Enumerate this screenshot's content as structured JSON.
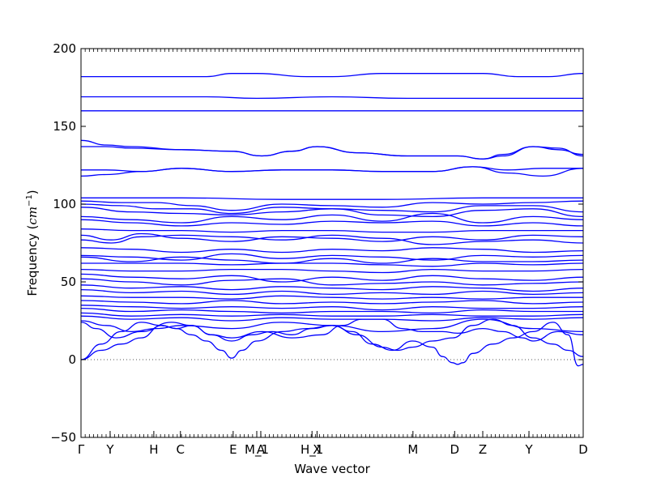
{
  "chart_data": {
    "type": "line",
    "title": "",
    "xlabel": "Wave vector",
    "ylabel_main": "Frequency (",
    "ylabel_unit": "cm",
    "ylabel_exp": "−1",
    "ylabel_close": ")",
    "ylim": [
      -50,
      200
    ],
    "yticks": [
      -50,
      0,
      50,
      100,
      150,
      200
    ],
    "ytick_labels": [
      "−50",
      "0",
      "50",
      "100",
      "150",
      "200"
    ],
    "x_range": [
      0,
      1
    ],
    "high_symmetry_points": [
      {
        "label": "Γ",
        "x": 0.0
      },
      {
        "label": "Y",
        "x": 0.058
      },
      {
        "label": "H",
        "x": 0.145
      },
      {
        "label": "C",
        "x": 0.198
      },
      {
        "label": "E",
        "x": 0.303
      },
      {
        "label": "M_1",
        "x": 0.35
      },
      {
        "label": "A",
        "x": 0.358
      },
      {
        "label": "H_1",
        "x": 0.46
      },
      {
        "label": "X",
        "x": 0.47
      },
      {
        "label": "M",
        "x": 0.661
      },
      {
        "label": "D",
        "x": 0.744
      },
      {
        "label": "Z",
        "x": 0.8
      },
      {
        "label": "Y",
        "x": 0.892
      },
      {
        "label": "D",
        "x": 1.0
      }
    ],
    "zero_line": {
      "y": 0,
      "style": "dotted",
      "color": "#555555"
    },
    "series_color": "#0000ff",
    "bands": [
      {
        "x": [
          0,
          0.08,
          0.16,
          0.25,
          0.3,
          0.35,
          0.45,
          0.5,
          0.6,
          0.7,
          0.8,
          0.87,
          0.93,
          1.0
        ],
        "y": [
          182,
          182,
          182,
          182,
          184,
          184,
          182,
          182,
          184,
          184,
          184,
          182,
          182,
          184
        ]
      },
      {
        "x": [
          0,
          0.25,
          0.35,
          0.5,
          0.65,
          0.8,
          1.0
        ],
        "y": [
          169,
          169,
          168,
          169,
          168,
          168,
          168
        ]
      },
      {
        "x": [
          0,
          0.25,
          0.5,
          0.75,
          1.0
        ],
        "y": [
          160,
          160,
          160,
          160,
          160
        ]
      },
      {
        "x": [
          0,
          0.05,
          0.1,
          0.2,
          0.3,
          0.36,
          0.42,
          0.47,
          0.55,
          0.65,
          0.75,
          0.8,
          0.84,
          0.9,
          0.95,
          1.0
        ],
        "y": [
          141,
          138,
          137,
          135,
          134,
          131,
          134,
          137,
          133,
          131,
          131,
          129,
          132,
          137,
          136,
          131
        ]
      },
      {
        "x": [
          0,
          0.05,
          0.1,
          0.2,
          0.3,
          0.36,
          0.42,
          0.47,
          0.55,
          0.65,
          0.75,
          0.8,
          0.84,
          0.9,
          0.95,
          1.0
        ],
        "y": [
          137,
          137,
          136,
          135,
          134,
          131,
          134,
          137,
          133,
          131,
          131,
          129,
          131,
          137,
          135,
          132
        ]
      },
      {
        "x": [
          0,
          0.05,
          0.12,
          0.2,
          0.3,
          0.4,
          0.5,
          0.6,
          0.7,
          0.78,
          0.85,
          0.92,
          1.0
        ],
        "y": [
          122,
          122,
          121,
          123,
          121,
          122,
          122,
          121,
          121,
          124,
          122,
          123,
          123
        ]
      },
      {
        "x": [
          0,
          0.05,
          0.12,
          0.2,
          0.3,
          0.4,
          0.5,
          0.6,
          0.7,
          0.78,
          0.85,
          0.92,
          1.0
        ],
        "y": [
          118,
          119,
          121,
          123,
          121,
          122,
          122,
          121,
          121,
          124,
          120,
          118,
          123
        ]
      },
      {
        "x": [
          0,
          0.2,
          0.4,
          0.6,
          0.8,
          1.0
        ],
        "y": [
          104,
          104,
          103,
          103,
          104,
          104
        ]
      },
      {
        "x": [
          0,
          0.08,
          0.15,
          0.22,
          0.3,
          0.4,
          0.5,
          0.6,
          0.7,
          0.8,
          0.9,
          1.0
        ],
        "y": [
          102,
          101,
          101,
          99,
          96,
          100,
          99,
          98,
          101,
          100,
          101,
          102
        ]
      },
      {
        "x": [
          0,
          0.08,
          0.15,
          0.22,
          0.3,
          0.4,
          0.5,
          0.6,
          0.7,
          0.8,
          0.9,
          1.0
        ],
        "y": [
          100,
          99,
          97,
          97,
          94,
          98,
          97,
          96,
          95,
          99,
          99,
          95
        ]
      },
      {
        "x": [
          0,
          0.1,
          0.2,
          0.3,
          0.4,
          0.5,
          0.6,
          0.7,
          0.8,
          0.9,
          1.0
        ],
        "y": [
          98,
          95,
          94,
          93,
          95,
          97,
          93,
          92,
          96,
          97,
          92
        ]
      },
      {
        "x": [
          0,
          0.1,
          0.2,
          0.3,
          0.4,
          0.5,
          0.6,
          0.7,
          0.8,
          0.9,
          1.0
        ],
        "y": [
          92,
          90,
          88,
          92,
          90,
          93,
          89,
          94,
          88,
          92,
          90
        ]
      },
      {
        "x": [
          0,
          0.1,
          0.2,
          0.3,
          0.4,
          0.5,
          0.6,
          0.7,
          0.8,
          0.9,
          1.0
        ],
        "y": [
          90,
          88,
          86,
          88,
          87,
          89,
          88,
          89,
          86,
          88,
          86
        ]
      },
      {
        "x": [
          0,
          0.1,
          0.2,
          0.3,
          0.4,
          0.5,
          0.6,
          0.7,
          0.8,
          0.9,
          1.0
        ],
        "y": [
          84,
          83,
          83,
          82,
          83,
          83,
          82,
          82,
          83,
          83,
          83
        ]
      },
      {
        "x": [
          0,
          0.06,
          0.12,
          0.2,
          0.3,
          0.4,
          0.5,
          0.6,
          0.7,
          0.8,
          0.9,
          1.0
        ],
        "y": [
          80,
          77,
          81,
          78,
          76,
          79,
          78,
          76,
          79,
          77,
          80,
          79
        ]
      },
      {
        "x": [
          0,
          0.06,
          0.12,
          0.2,
          0.3,
          0.4,
          0.5,
          0.6,
          0.7,
          0.8,
          0.9,
          1.0
        ],
        "y": [
          77,
          75,
          79,
          80,
          79,
          77,
          80,
          78,
          74,
          76,
          77,
          75
        ]
      },
      {
        "x": [
          0,
          0.1,
          0.2,
          0.3,
          0.4,
          0.5,
          0.6,
          0.7,
          0.8,
          0.9,
          1.0
        ],
        "y": [
          72,
          71,
          69,
          71,
          69,
          71,
          70,
          72,
          71,
          69,
          70
        ]
      },
      {
        "x": [
          0,
          0.1,
          0.2,
          0.3,
          0.4,
          0.5,
          0.6,
          0.7,
          0.8,
          0.9,
          1.0
        ],
        "y": [
          67,
          66,
          64,
          68,
          65,
          67,
          66,
          64,
          67,
          66,
          67
        ]
      },
      {
        "x": [
          0,
          0.1,
          0.2,
          0.3,
          0.4,
          0.5,
          0.6,
          0.7,
          0.8,
          0.9,
          1.0
        ],
        "y": [
          66,
          63,
          66,
          64,
          62,
          65,
          62,
          65,
          63,
          63,
          64
        ]
      },
      {
        "x": [
          0,
          0.1,
          0.2,
          0.3,
          0.4,
          0.5,
          0.6,
          0.7,
          0.8,
          0.9,
          1.0
        ],
        "y": [
          62,
          62,
          62,
          61,
          62,
          62,
          61,
          60,
          62,
          61,
          62
        ]
      },
      {
        "x": [
          0,
          0.1,
          0.2,
          0.3,
          0.4,
          0.5,
          0.6,
          0.7,
          0.8,
          0.9,
          1.0
        ],
        "y": [
          58,
          57,
          57,
          58,
          58,
          57,
          56,
          58,
          57,
          57,
          58
        ]
      },
      {
        "x": [
          0,
          0.1,
          0.2,
          0.3,
          0.4,
          0.5,
          0.6,
          0.7,
          0.8,
          0.9,
          1.0
        ],
        "y": [
          55,
          53,
          52,
          54,
          50,
          53,
          51,
          54,
          52,
          51,
          53
        ]
      },
      {
        "x": [
          0,
          0.1,
          0.2,
          0.3,
          0.4,
          0.5,
          0.6,
          0.7,
          0.8,
          0.9,
          1.0
        ],
        "y": [
          52,
          50,
          48,
          51,
          52,
          48,
          49,
          50,
          48,
          49,
          50
        ]
      },
      {
        "x": [
          0,
          0.1,
          0.2,
          0.3,
          0.4,
          0.5,
          0.6,
          0.7,
          0.8,
          0.9,
          1.0
        ],
        "y": [
          48,
          46,
          47,
          45,
          47,
          46,
          45,
          47,
          46,
          44,
          46
        ]
      },
      {
        "x": [
          0,
          0.1,
          0.2,
          0.3,
          0.4,
          0.5,
          0.6,
          0.7,
          0.8,
          0.9,
          1.0
        ],
        "y": [
          45,
          43,
          44,
          42,
          44,
          42,
          43,
          42,
          44,
          42,
          43
        ]
      },
      {
        "x": [
          0,
          0.1,
          0.2,
          0.3,
          0.4,
          0.5,
          0.6,
          0.7,
          0.8,
          0.9,
          1.0
        ],
        "y": [
          41,
          40,
          40,
          39,
          41,
          40,
          39,
          40,
          39,
          40,
          40
        ]
      },
      {
        "x": [
          0,
          0.1,
          0.2,
          0.3,
          0.4,
          0.5,
          0.6,
          0.7,
          0.8,
          0.9,
          1.0
        ],
        "y": [
          38,
          37,
          36,
          38,
          36,
          37,
          36,
          37,
          38,
          36,
          37
        ]
      },
      {
        "x": [
          0,
          0.1,
          0.2,
          0.3,
          0.4,
          0.5,
          0.6,
          0.7,
          0.8,
          0.9,
          1.0
        ],
        "y": [
          35,
          34,
          33,
          34,
          33,
          34,
          32,
          34,
          33,
          33,
          34
        ]
      },
      {
        "x": [
          0,
          0.1,
          0.2,
          0.3,
          0.4,
          0.5,
          0.6,
          0.7,
          0.8,
          0.9,
          1.0
        ],
        "y": [
          33,
          31,
          32,
          31,
          30,
          31,
          31,
          30,
          32,
          31,
          31
        ]
      },
      {
        "x": [
          0,
          0.1,
          0.2,
          0.3,
          0.4,
          0.5,
          0.6,
          0.7,
          0.8,
          0.9,
          1.0
        ],
        "y": [
          30,
          28,
          29,
          28,
          29,
          28,
          28,
          29,
          28,
          28,
          29
        ]
      },
      {
        "x": [
          0,
          0.1,
          0.2,
          0.3,
          0.4,
          0.5,
          0.6,
          0.7,
          0.8,
          0.9,
          1.0
        ],
        "y": [
          28,
          26,
          27,
          25,
          27,
          26,
          26,
          25,
          27,
          26,
          27
        ]
      },
      {
        "x": [
          0,
          0.05,
          0.1,
          0.15,
          0.2,
          0.3,
          0.4,
          0.5,
          0.6,
          0.7,
          0.8,
          0.9,
          1.0
        ],
        "y": [
          25,
          22,
          18,
          20,
          22,
          20,
          24,
          22,
          18,
          20,
          26,
          20,
          18
        ]
      },
      {
        "x": [
          0,
          0.03,
          0.07,
          0.12,
          0.18,
          0.22,
          0.26,
          0.3,
          0.36,
          0.42,
          0.48,
          0.52,
          0.56,
          0.6,
          0.64,
          0.68,
          0.72,
          0.75,
          0.8,
          0.84,
          0.88,
          0.9,
          0.95,
          1.0
        ],
        "y": [
          24,
          20,
          14,
          18,
          24,
          22,
          16,
          14,
          18,
          14,
          16,
          22,
          26,
          26,
          20,
          18,
          18,
          17,
          20,
          18,
          14,
          12,
          18,
          16
        ]
      },
      {
        "x": [
          0,
          0.04,
          0.08,
          0.12,
          0.16,
          0.19,
          0.22,
          0.25,
          0.28,
          0.3,
          0.32,
          0.35,
          0.4,
          0.45,
          0.5,
          0.55,
          0.6,
          0.63,
          0.66,
          0.7,
          0.74,
          0.78,
          0.82,
          0.86,
          0.9,
          0.94,
          0.97,
          1.0
        ],
        "y": [
          0,
          6,
          10,
          14,
          22,
          20,
          16,
          12,
          6,
          1,
          6,
          12,
          18,
          20,
          22,
          16,
          8,
          6,
          8,
          12,
          14,
          22,
          26,
          22,
          14,
          10,
          6,
          2
        ]
      },
      {
        "x": [
          0,
          0.04,
          0.08,
          0.12,
          0.16,
          0.19,
          0.22,
          0.26,
          0.3,
          0.34,
          0.38,
          0.42,
          0.46,
          0.5,
          0.54,
          0.58,
          0.62,
          0.66,
          0.7,
          0.72,
          0.74,
          0.75,
          0.76,
          0.78,
          0.82,
          0.86,
          0.9,
          0.94,
          0.97,
          0.99,
          1.0
        ],
        "y": [
          0,
          10,
          18,
          24,
          22,
          20,
          22,
          16,
          12,
          16,
          18,
          16,
          20,
          22,
          18,
          10,
          6,
          12,
          8,
          2,
          -2,
          -3,
          -2,
          4,
          10,
          14,
          18,
          24,
          16,
          -4,
          -3
        ]
      }
    ]
  }
}
